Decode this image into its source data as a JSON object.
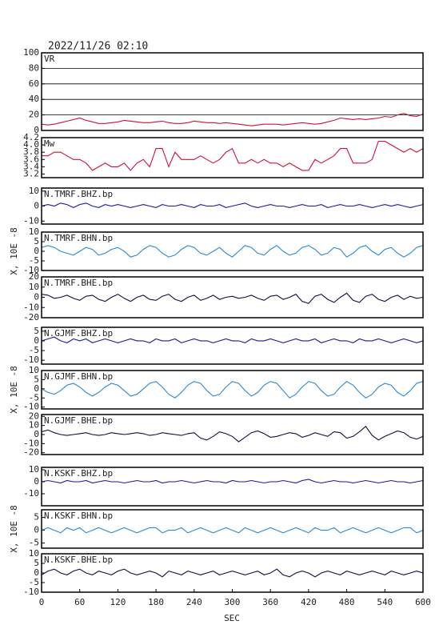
{
  "chart_data": {
    "type": "multi-panel",
    "title": "2022/11/26 02:10",
    "xlabel": "SEC",
    "ylabel": "X, 10E -8",
    "xlim": [
      0,
      600
    ],
    "xticks": [
      0,
      60,
      120,
      180,
      240,
      300,
      360,
      420,
      480,
      540,
      600
    ],
    "x": [
      0,
      10,
      20,
      30,
      40,
      50,
      60,
      70,
      80,
      90,
      100,
      110,
      120,
      130,
      140,
      150,
      160,
      170,
      180,
      190,
      200,
      210,
      220,
      230,
      240,
      250,
      260,
      270,
      280,
      290,
      300,
      310,
      320,
      330,
      340,
      350,
      360,
      370,
      380,
      390,
      400,
      410,
      420,
      430,
      440,
      450,
      460,
      470,
      480,
      490,
      500,
      510,
      520,
      530,
      540,
      550,
      560,
      570,
      580,
      590,
      600
    ],
    "panels": [
      {
        "label": "VR",
        "color": "#d0103a",
        "grid": true,
        "ylim": [
          0,
          100
        ],
        "yticks": [
          0,
          20,
          40,
          60,
          80,
          100
        ],
        "values": [
          8,
          7,
          8,
          10,
          12,
          14,
          16,
          13,
          11,
          9,
          9,
          10,
          11,
          13,
          12,
          11,
          10,
          10,
          11,
          12,
          10,
          9,
          9,
          10,
          12,
          11,
          10,
          10,
          9,
          10,
          9,
          8,
          7,
          6,
          7,
          8,
          8,
          8,
          7,
          8,
          9,
          10,
          9,
          8,
          9,
          11,
          13,
          16,
          15,
          14,
          15,
          14,
          15,
          16,
          18,
          17,
          20,
          22,
          19,
          18,
          21
        ]
      },
      {
        "label": "Mw",
        "color": "#d0103a",
        "grid": false,
        "ylim": [
          3.1,
          4.2
        ],
        "yticks": [
          3.2,
          3.4,
          3.6,
          3.8,
          {
            "value": 4,
            "label": "4.0"
          },
          4.2
        ],
        "values": [
          3.7,
          3.7,
          3.8,
          3.8,
          3.7,
          3.6,
          3.6,
          3.5,
          3.3,
          3.4,
          3.5,
          3.4,
          3.4,
          3.5,
          3.3,
          3.5,
          3.6,
          3.4,
          3.9,
          3.9,
          3.4,
          3.8,
          3.6,
          3.6,
          3.6,
          3.7,
          3.6,
          3.5,
          3.6,
          3.8,
          3.9,
          3.5,
          3.5,
          3.6,
          3.5,
          3.6,
          3.5,
          3.5,
          3.4,
          3.5,
          3.4,
          3.3,
          3.3,
          3.6,
          3.5,
          3.6,
          3.7,
          3.9,
          3.9,
          3.5,
          3.5,
          3.5,
          3.6,
          4.1,
          4.1,
          4.0,
          3.9,
          3.8,
          3.9,
          3.8,
          3.9
        ]
      },
      {
        "label": "N.TMRF.BHZ.bp",
        "color": "#1a1aa0",
        "grid": false,
        "ylim": [
          -12,
          12
        ],
        "yticks": [
          -10,
          0,
          10
        ],
        "values": [
          0,
          1,
          0,
          2,
          1,
          -1,
          1,
          2,
          0,
          -1,
          1,
          0,
          1,
          0,
          -1,
          0,
          1,
          0,
          -1,
          1,
          0,
          0,
          1,
          0,
          -1,
          1,
          0,
          0,
          1,
          -1,
          0,
          1,
          2,
          0,
          -1,
          0,
          1,
          0,
          0,
          -1,
          0,
          1,
          0,
          0,
          1,
          -1,
          0,
          1,
          0,
          0,
          1,
          0,
          -1,
          0,
          1,
          0,
          1,
          0,
          -1,
          0,
          1
        ]
      },
      {
        "label": "N.TMRF.BHN.bp",
        "color": "#2a8ad0",
        "grid": false,
        "ylim": [
          -10,
          10
        ],
        "yticks": [
          -10,
          -5,
          0,
          5,
          10
        ],
        "values": [
          2,
          3,
          2,
          0,
          -1,
          -2,
          0,
          2,
          1,
          -2,
          -1,
          1,
          2,
          0,
          -3,
          -2,
          1,
          3,
          2,
          -1,
          -3,
          -2,
          1,
          3,
          2,
          -1,
          -2,
          0,
          2,
          -1,
          -3,
          0,
          3,
          2,
          -1,
          -2,
          1,
          3,
          0,
          -2,
          -1,
          2,
          3,
          1,
          -2,
          -1,
          2,
          1,
          -3,
          -1,
          2,
          3,
          0,
          -2,
          1,
          2,
          -1,
          -3,
          -1,
          2,
          3
        ]
      },
      {
        "label": "N.TMRF.BHE.bp",
        "color": "#101040",
        "grid": false,
        "ylim": [
          -20,
          20
        ],
        "yticks": [
          -20,
          -10,
          0,
          10,
          20
        ],
        "values": [
          3,
          2,
          -1,
          0,
          2,
          -1,
          -3,
          1,
          2,
          -2,
          -4,
          0,
          3,
          -1,
          -4,
          0,
          2,
          -2,
          -3,
          1,
          3,
          -2,
          -4,
          0,
          2,
          -3,
          -1,
          2,
          -2,
          0,
          1,
          -1,
          0,
          2,
          -1,
          -3,
          1,
          2,
          -2,
          0,
          3,
          -4,
          -6,
          1,
          3,
          -2,
          -5,
          0,
          4,
          -3,
          -5,
          1,
          3,
          -2,
          -4,
          0,
          2,
          -2,
          1,
          -1,
          0
        ]
      },
      {
        "label": "N.GJMF.BHZ.bp",
        "color": "#1a1aa0",
        "grid": false,
        "ylim": [
          -12,
          7
        ],
        "yticks": [
          -10,
          -5,
          0,
          5
        ],
        "values": [
          0,
          1,
          2,
          0,
          -1,
          1,
          0,
          1,
          -1,
          0,
          1,
          0,
          -1,
          0,
          1,
          0,
          0,
          -1,
          1,
          0,
          0,
          1,
          -1,
          0,
          1,
          0,
          0,
          -1,
          0,
          1,
          0,
          0,
          -1,
          1,
          0,
          0,
          1,
          0,
          -1,
          0,
          1,
          0,
          0,
          1,
          -1,
          0,
          1,
          0,
          0,
          -1,
          1,
          0,
          0,
          1,
          0,
          -1,
          0,
          1,
          0,
          -1,
          0
        ]
      },
      {
        "label": "N.GJMF.BHN.bp",
        "color": "#2a8ad0",
        "grid": false,
        "ylim": [
          -11,
          10
        ],
        "yticks": [
          -10,
          -5,
          0,
          5,
          10
        ],
        "values": [
          0,
          -2,
          -3,
          -1,
          2,
          3,
          1,
          -2,
          -4,
          -2,
          1,
          3,
          2,
          -1,
          -4,
          -3,
          0,
          3,
          4,
          1,
          -3,
          -5,
          -2,
          2,
          4,
          3,
          -1,
          -4,
          -3,
          1,
          4,
          3,
          -1,
          -4,
          -2,
          2,
          4,
          3,
          -1,
          -5,
          -3,
          1,
          4,
          3,
          -1,
          -4,
          -3,
          1,
          4,
          2,
          -2,
          -5,
          -3,
          1,
          3,
          2,
          -2,
          -4,
          -1,
          3,
          4
        ]
      },
      {
        "label": "N.GJMF.BHE.bp",
        "color": "#101040",
        "grid": false,
        "ylim": [
          -22,
          22
        ],
        "yticks": [
          -20,
          -10,
          0,
          10,
          20
        ],
        "values": [
          3,
          5,
          2,
          0,
          -1,
          0,
          1,
          2,
          0,
          -1,
          0,
          2,
          1,
          0,
          1,
          2,
          1,
          -1,
          0,
          2,
          1,
          0,
          -1,
          1,
          2,
          -4,
          -6,
          -2,
          3,
          1,
          -2,
          -8,
          -3,
          2,
          4,
          1,
          -3,
          -2,
          0,
          2,
          1,
          -3,
          -1,
          2,
          0,
          -2,
          3,
          2,
          -4,
          -2,
          3,
          9,
          -1,
          -6,
          -2,
          1,
          4,
          2,
          -3,
          -5,
          -2
        ]
      },
      {
        "label": "N.KSKF.BHZ.bp",
        "color": "#1a1aa0",
        "grid": false,
        "ylim": [
          -20,
          12
        ],
        "yticks": [
          -10,
          0,
          10
        ],
        "values": [
          0,
          1,
          0,
          -1,
          1,
          0,
          0,
          1,
          -1,
          0,
          1,
          0,
          0,
          -1,
          0,
          1,
          0,
          0,
          1,
          -1,
          0,
          0,
          1,
          0,
          -1,
          0,
          1,
          0,
          0,
          -1,
          1,
          0,
          0,
          1,
          0,
          -1,
          0,
          0,
          1,
          0,
          -1,
          1,
          2,
          0,
          -1,
          0,
          1,
          0,
          0,
          -1,
          0,
          1,
          0,
          -1,
          0,
          1,
          0,
          0,
          -1,
          0,
          1
        ]
      },
      {
        "label": "N.KSKF.BHN.bp",
        "color": "#2a8ad0",
        "grid": false,
        "ylim": [
          -7,
          8
        ],
        "yticks": [
          -5,
          0,
          5
        ],
        "values": [
          0,
          1,
          0,
          -1,
          1,
          0,
          1,
          -1,
          0,
          1,
          0,
          -1,
          0,
          1,
          0,
          -1,
          0,
          1,
          1,
          -1,
          0,
          0,
          1,
          -1,
          0,
          1,
          0,
          -1,
          0,
          1,
          0,
          -1,
          1,
          0,
          -1,
          0,
          1,
          0,
          -1,
          0,
          1,
          0,
          -1,
          1,
          0,
          0,
          1,
          -1,
          0,
          1,
          0,
          -1,
          0,
          1,
          0,
          -1,
          0,
          1,
          1,
          -1,
          0
        ]
      },
      {
        "label": "N.KSKF.BHE.bp",
        "color": "#101040",
        "grid": false,
        "ylim": [
          -10,
          10
        ],
        "yticks": [
          -10,
          -5,
          0,
          5,
          10
        ],
        "values": [
          -1,
          1,
          2,
          0,
          -1,
          1,
          2,
          0,
          -1,
          1,
          0,
          -1,
          1,
          2,
          0,
          -1,
          0,
          1,
          0,
          -2,
          1,
          0,
          -1,
          1,
          0,
          -1,
          0,
          1,
          -1,
          0,
          1,
          0,
          -1,
          0,
          1,
          -1,
          0,
          2,
          -1,
          -2,
          0,
          1,
          0,
          -2,
          0,
          1,
          0,
          -1,
          1,
          0,
          -1,
          0,
          1,
          0,
          -1,
          1,
          0,
          -1,
          0,
          1,
          0
        ]
      }
    ]
  }
}
